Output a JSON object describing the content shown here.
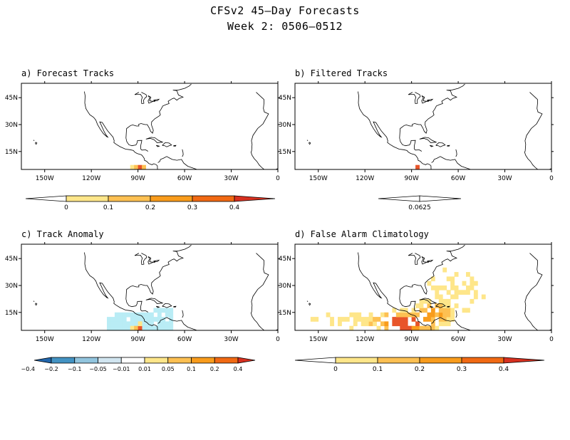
{
  "title": {
    "line1": "CFSv2 45–Day Forecasts",
    "line2": "Week 2: 0506–0512"
  },
  "lon_ticks": [
    "150W",
    "120W",
    "90W",
    "60W",
    "30W",
    "0"
  ],
  "lat_ticks": [
    "45N",
    "30N",
    "15N"
  ],
  "panels": [
    {
      "title": "a) Forecast Tracks",
      "cells": [
        {
          "lon": -93.75,
          "lat": 6.25,
          "level": 1
        },
        {
          "lon": -91.25,
          "lat": 6.25,
          "level": 2
        },
        {
          "lon": -88.75,
          "lat": 6.25,
          "level": 4
        },
        {
          "lon": -86.25,
          "lat": 6.25,
          "level": 2
        }
      ],
      "colorbar": {
        "labels": [
          "0",
          "0.1",
          "0.2",
          "0.3",
          "0.4"
        ],
        "colors": [
          "#fee68a",
          "#fdc052",
          "#f99c1c",
          "#f16913",
          "#d7301f"
        ]
      }
    },
    {
      "title": "b) Filtered Tracks",
      "cells": [
        {
          "lon": -86.25,
          "lat": 6.25,
          "level": 4
        }
      ],
      "colorbar": {
        "labels": [
          "0.0625"
        ],
        "colors": [
          "#ef3b2c"
        ]
      }
    },
    {
      "title": "c) Track Anomaly",
      "cells": [],
      "colorbar": {
        "labels": [
          "−0.4",
          "−0.2",
          "−0.1",
          "−0.05",
          "−0.01",
          "0.01",
          "0.05",
          "0.1",
          "0.2",
          "0.4"
        ],
        "colors": [
          "#2166ac",
          "#4393c3",
          "#92c5de",
          "#d1e5f0",
          "#ffffff",
          "#fee68a",
          "#fdc052",
          "#f99c1c",
          "#f16913",
          "#d7301f"
        ]
      }
    },
    {
      "title": "d) False Alarm Climatology",
      "cells": [],
      "colorbar": {
        "labels": [
          "0",
          "0.1",
          "0.2",
          "0.3",
          "0.4"
        ],
        "colors": [
          "#fee68a",
          "#fdc052",
          "#f99c1c",
          "#f16913",
          "#d7301f"
        ]
      }
    }
  ],
  "colors": {
    "anomaly_neg": "#b9ecf5",
    "level1": "#fee68a",
    "level2": "#fdc052",
    "level3": "#f99c1c",
    "level4": "#e8552a"
  }
}
